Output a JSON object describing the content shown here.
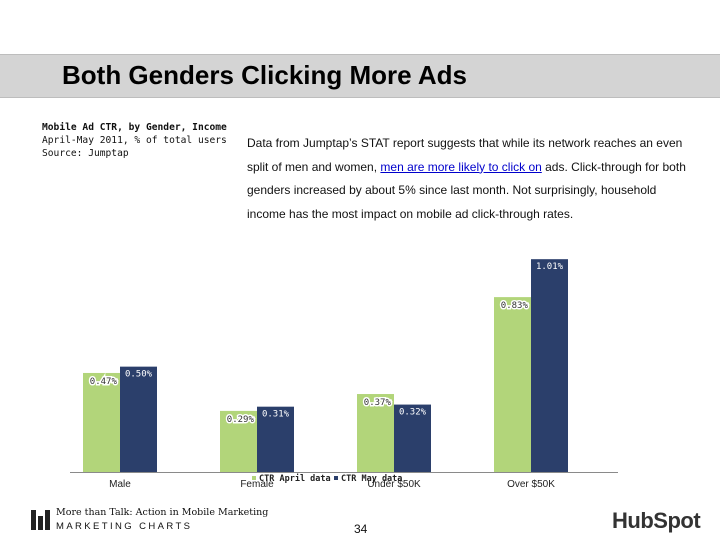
{
  "slide": {
    "title": "Both Genders Clicking More Ads",
    "body_before_link": "Data from Jumptap’s STAT report suggests that while its network reaches an even split of men and women, ",
    "body_link": "men are more likely to click on",
    "body_after_link": " ads. Click-through for both genders increased by about 5% since last month. Not surprisingly, household income has the most impact on mobile ad click-through rates.",
    "page_number": "34"
  },
  "footer": {
    "tagline": "More than Talk: Action in Mobile Marketing",
    "brand": "MARKETING CHARTS",
    "hubspot": "HubSpot"
  },
  "colors": {
    "april": "#b2d57a",
    "may": "#2b3f6b",
    "title_band": "#d4d4d4"
  },
  "chart_data": {
    "type": "bar",
    "title": "Mobile Ad CTR, by Gender, Income",
    "subtitle": "April-May 2011, % of total users",
    "source": "Source: Jumptap",
    "categories": [
      "Male",
      "Female",
      "Under $50K",
      "Over $50K"
    ],
    "series": [
      {
        "name": "CTR April data",
        "values": [
          0.47,
          0.29,
          0.37,
          0.83
        ],
        "labels": [
          "0.47%",
          "0.29%",
          "0.37%",
          "0.83%"
        ]
      },
      {
        "name": "CTR May data",
        "values": [
          0.5,
          0.31,
          0.32,
          1.01
        ],
        "labels": [
          "0.50%",
          "0.31%",
          "0.32%",
          "1.01%"
        ]
      }
    ],
    "ylim": [
      0,
      1.12
    ],
    "xlabel": "",
    "ylabel": "",
    "grid": false,
    "legend_position": "bottom-center"
  }
}
